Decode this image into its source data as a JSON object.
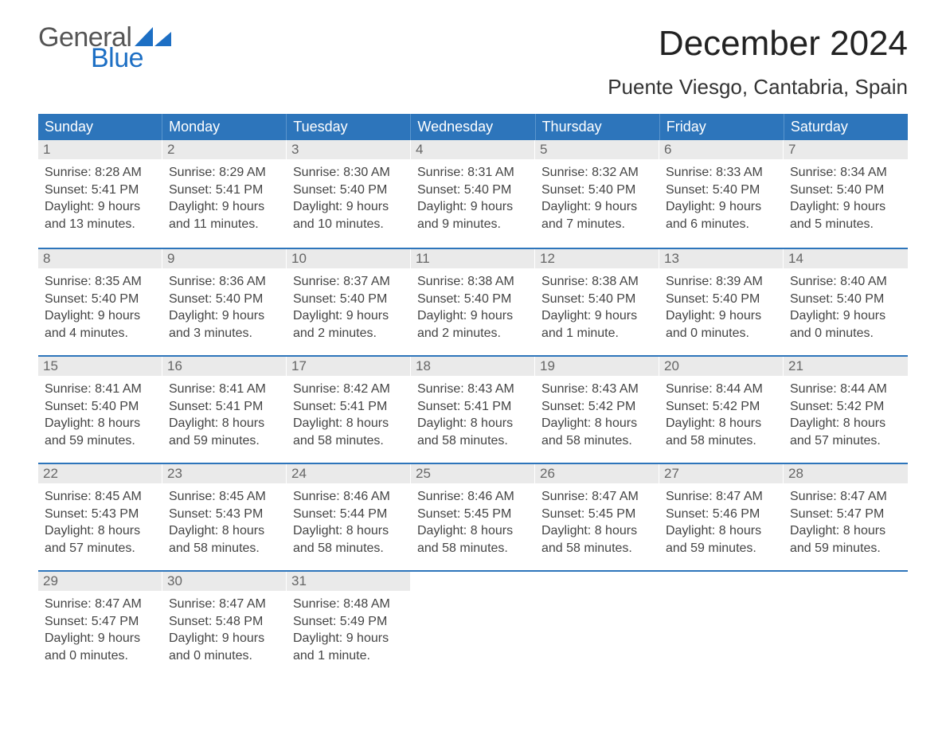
{
  "logo": {
    "text_top": "General",
    "text_bottom": "Blue",
    "color_gray": "#555555",
    "color_blue": "#1d6fc4"
  },
  "title": "December 2024",
  "subtitle": "Puente Viesgo, Cantabria, Spain",
  "colors": {
    "header_bg": "#2d75bb",
    "header_border": "#5a95cd",
    "daynum_bg": "#eaeaea",
    "daynum_color": "#666666",
    "week_divider": "#2d75bb",
    "body_text": "#444444",
    "background": "#ffffff"
  },
  "fontsizes": {
    "title": 44,
    "subtitle": 26,
    "day_header": 18,
    "day_num": 17,
    "body": 16
  },
  "day_headers": [
    "Sunday",
    "Monday",
    "Tuesday",
    "Wednesday",
    "Thursday",
    "Friday",
    "Saturday"
  ],
  "weeks": [
    [
      {
        "n": "1",
        "sunrise": "Sunrise: 8:28 AM",
        "sunset": "Sunset: 5:41 PM",
        "d1": "Daylight: 9 hours",
        "d2": "and 13 minutes."
      },
      {
        "n": "2",
        "sunrise": "Sunrise: 8:29 AM",
        "sunset": "Sunset: 5:41 PM",
        "d1": "Daylight: 9 hours",
        "d2": "and 11 minutes."
      },
      {
        "n": "3",
        "sunrise": "Sunrise: 8:30 AM",
        "sunset": "Sunset: 5:40 PM",
        "d1": "Daylight: 9 hours",
        "d2": "and 10 minutes."
      },
      {
        "n": "4",
        "sunrise": "Sunrise: 8:31 AM",
        "sunset": "Sunset: 5:40 PM",
        "d1": "Daylight: 9 hours",
        "d2": "and 9 minutes."
      },
      {
        "n": "5",
        "sunrise": "Sunrise: 8:32 AM",
        "sunset": "Sunset: 5:40 PM",
        "d1": "Daylight: 9 hours",
        "d2": "and 7 minutes."
      },
      {
        "n": "6",
        "sunrise": "Sunrise: 8:33 AM",
        "sunset": "Sunset: 5:40 PM",
        "d1": "Daylight: 9 hours",
        "d2": "and 6 minutes."
      },
      {
        "n": "7",
        "sunrise": "Sunrise: 8:34 AM",
        "sunset": "Sunset: 5:40 PM",
        "d1": "Daylight: 9 hours",
        "d2": "and 5 minutes."
      }
    ],
    [
      {
        "n": "8",
        "sunrise": "Sunrise: 8:35 AM",
        "sunset": "Sunset: 5:40 PM",
        "d1": "Daylight: 9 hours",
        "d2": "and 4 minutes."
      },
      {
        "n": "9",
        "sunrise": "Sunrise: 8:36 AM",
        "sunset": "Sunset: 5:40 PM",
        "d1": "Daylight: 9 hours",
        "d2": "and 3 minutes."
      },
      {
        "n": "10",
        "sunrise": "Sunrise: 8:37 AM",
        "sunset": "Sunset: 5:40 PM",
        "d1": "Daylight: 9 hours",
        "d2": "and 2 minutes."
      },
      {
        "n": "11",
        "sunrise": "Sunrise: 8:38 AM",
        "sunset": "Sunset: 5:40 PM",
        "d1": "Daylight: 9 hours",
        "d2": "and 2 minutes."
      },
      {
        "n": "12",
        "sunrise": "Sunrise: 8:38 AM",
        "sunset": "Sunset: 5:40 PM",
        "d1": "Daylight: 9 hours",
        "d2": "and 1 minute."
      },
      {
        "n": "13",
        "sunrise": "Sunrise: 8:39 AM",
        "sunset": "Sunset: 5:40 PM",
        "d1": "Daylight: 9 hours",
        "d2": "and 0 minutes."
      },
      {
        "n": "14",
        "sunrise": "Sunrise: 8:40 AM",
        "sunset": "Sunset: 5:40 PM",
        "d1": "Daylight: 9 hours",
        "d2": "and 0 minutes."
      }
    ],
    [
      {
        "n": "15",
        "sunrise": "Sunrise: 8:41 AM",
        "sunset": "Sunset: 5:40 PM",
        "d1": "Daylight: 8 hours",
        "d2": "and 59 minutes."
      },
      {
        "n": "16",
        "sunrise": "Sunrise: 8:41 AM",
        "sunset": "Sunset: 5:41 PM",
        "d1": "Daylight: 8 hours",
        "d2": "and 59 minutes."
      },
      {
        "n": "17",
        "sunrise": "Sunrise: 8:42 AM",
        "sunset": "Sunset: 5:41 PM",
        "d1": "Daylight: 8 hours",
        "d2": "and 58 minutes."
      },
      {
        "n": "18",
        "sunrise": "Sunrise: 8:43 AM",
        "sunset": "Sunset: 5:41 PM",
        "d1": "Daylight: 8 hours",
        "d2": "and 58 minutes."
      },
      {
        "n": "19",
        "sunrise": "Sunrise: 8:43 AM",
        "sunset": "Sunset: 5:42 PM",
        "d1": "Daylight: 8 hours",
        "d2": "and 58 minutes."
      },
      {
        "n": "20",
        "sunrise": "Sunrise: 8:44 AM",
        "sunset": "Sunset: 5:42 PM",
        "d1": "Daylight: 8 hours",
        "d2": "and 58 minutes."
      },
      {
        "n": "21",
        "sunrise": "Sunrise: 8:44 AM",
        "sunset": "Sunset: 5:42 PM",
        "d1": "Daylight: 8 hours",
        "d2": "and 57 minutes."
      }
    ],
    [
      {
        "n": "22",
        "sunrise": "Sunrise: 8:45 AM",
        "sunset": "Sunset: 5:43 PM",
        "d1": "Daylight: 8 hours",
        "d2": "and 57 minutes."
      },
      {
        "n": "23",
        "sunrise": "Sunrise: 8:45 AM",
        "sunset": "Sunset: 5:43 PM",
        "d1": "Daylight: 8 hours",
        "d2": "and 58 minutes."
      },
      {
        "n": "24",
        "sunrise": "Sunrise: 8:46 AM",
        "sunset": "Sunset: 5:44 PM",
        "d1": "Daylight: 8 hours",
        "d2": "and 58 minutes."
      },
      {
        "n": "25",
        "sunrise": "Sunrise: 8:46 AM",
        "sunset": "Sunset: 5:45 PM",
        "d1": "Daylight: 8 hours",
        "d2": "and 58 minutes."
      },
      {
        "n": "26",
        "sunrise": "Sunrise: 8:47 AM",
        "sunset": "Sunset: 5:45 PM",
        "d1": "Daylight: 8 hours",
        "d2": "and 58 minutes."
      },
      {
        "n": "27",
        "sunrise": "Sunrise: 8:47 AM",
        "sunset": "Sunset: 5:46 PM",
        "d1": "Daylight: 8 hours",
        "d2": "and 59 minutes."
      },
      {
        "n": "28",
        "sunrise": "Sunrise: 8:47 AM",
        "sunset": "Sunset: 5:47 PM",
        "d1": "Daylight: 8 hours",
        "d2": "and 59 minutes."
      }
    ],
    [
      {
        "n": "29",
        "sunrise": "Sunrise: 8:47 AM",
        "sunset": "Sunset: 5:47 PM",
        "d1": "Daylight: 9 hours",
        "d2": "and 0 minutes."
      },
      {
        "n": "30",
        "sunrise": "Sunrise: 8:47 AM",
        "sunset": "Sunset: 5:48 PM",
        "d1": "Daylight: 9 hours",
        "d2": "and 0 minutes."
      },
      {
        "n": "31",
        "sunrise": "Sunrise: 8:48 AM",
        "sunset": "Sunset: 5:49 PM",
        "d1": "Daylight: 9 hours",
        "d2": "and 1 minute."
      },
      {
        "empty": true
      },
      {
        "empty": true
      },
      {
        "empty": true
      },
      {
        "empty": true
      }
    ]
  ]
}
